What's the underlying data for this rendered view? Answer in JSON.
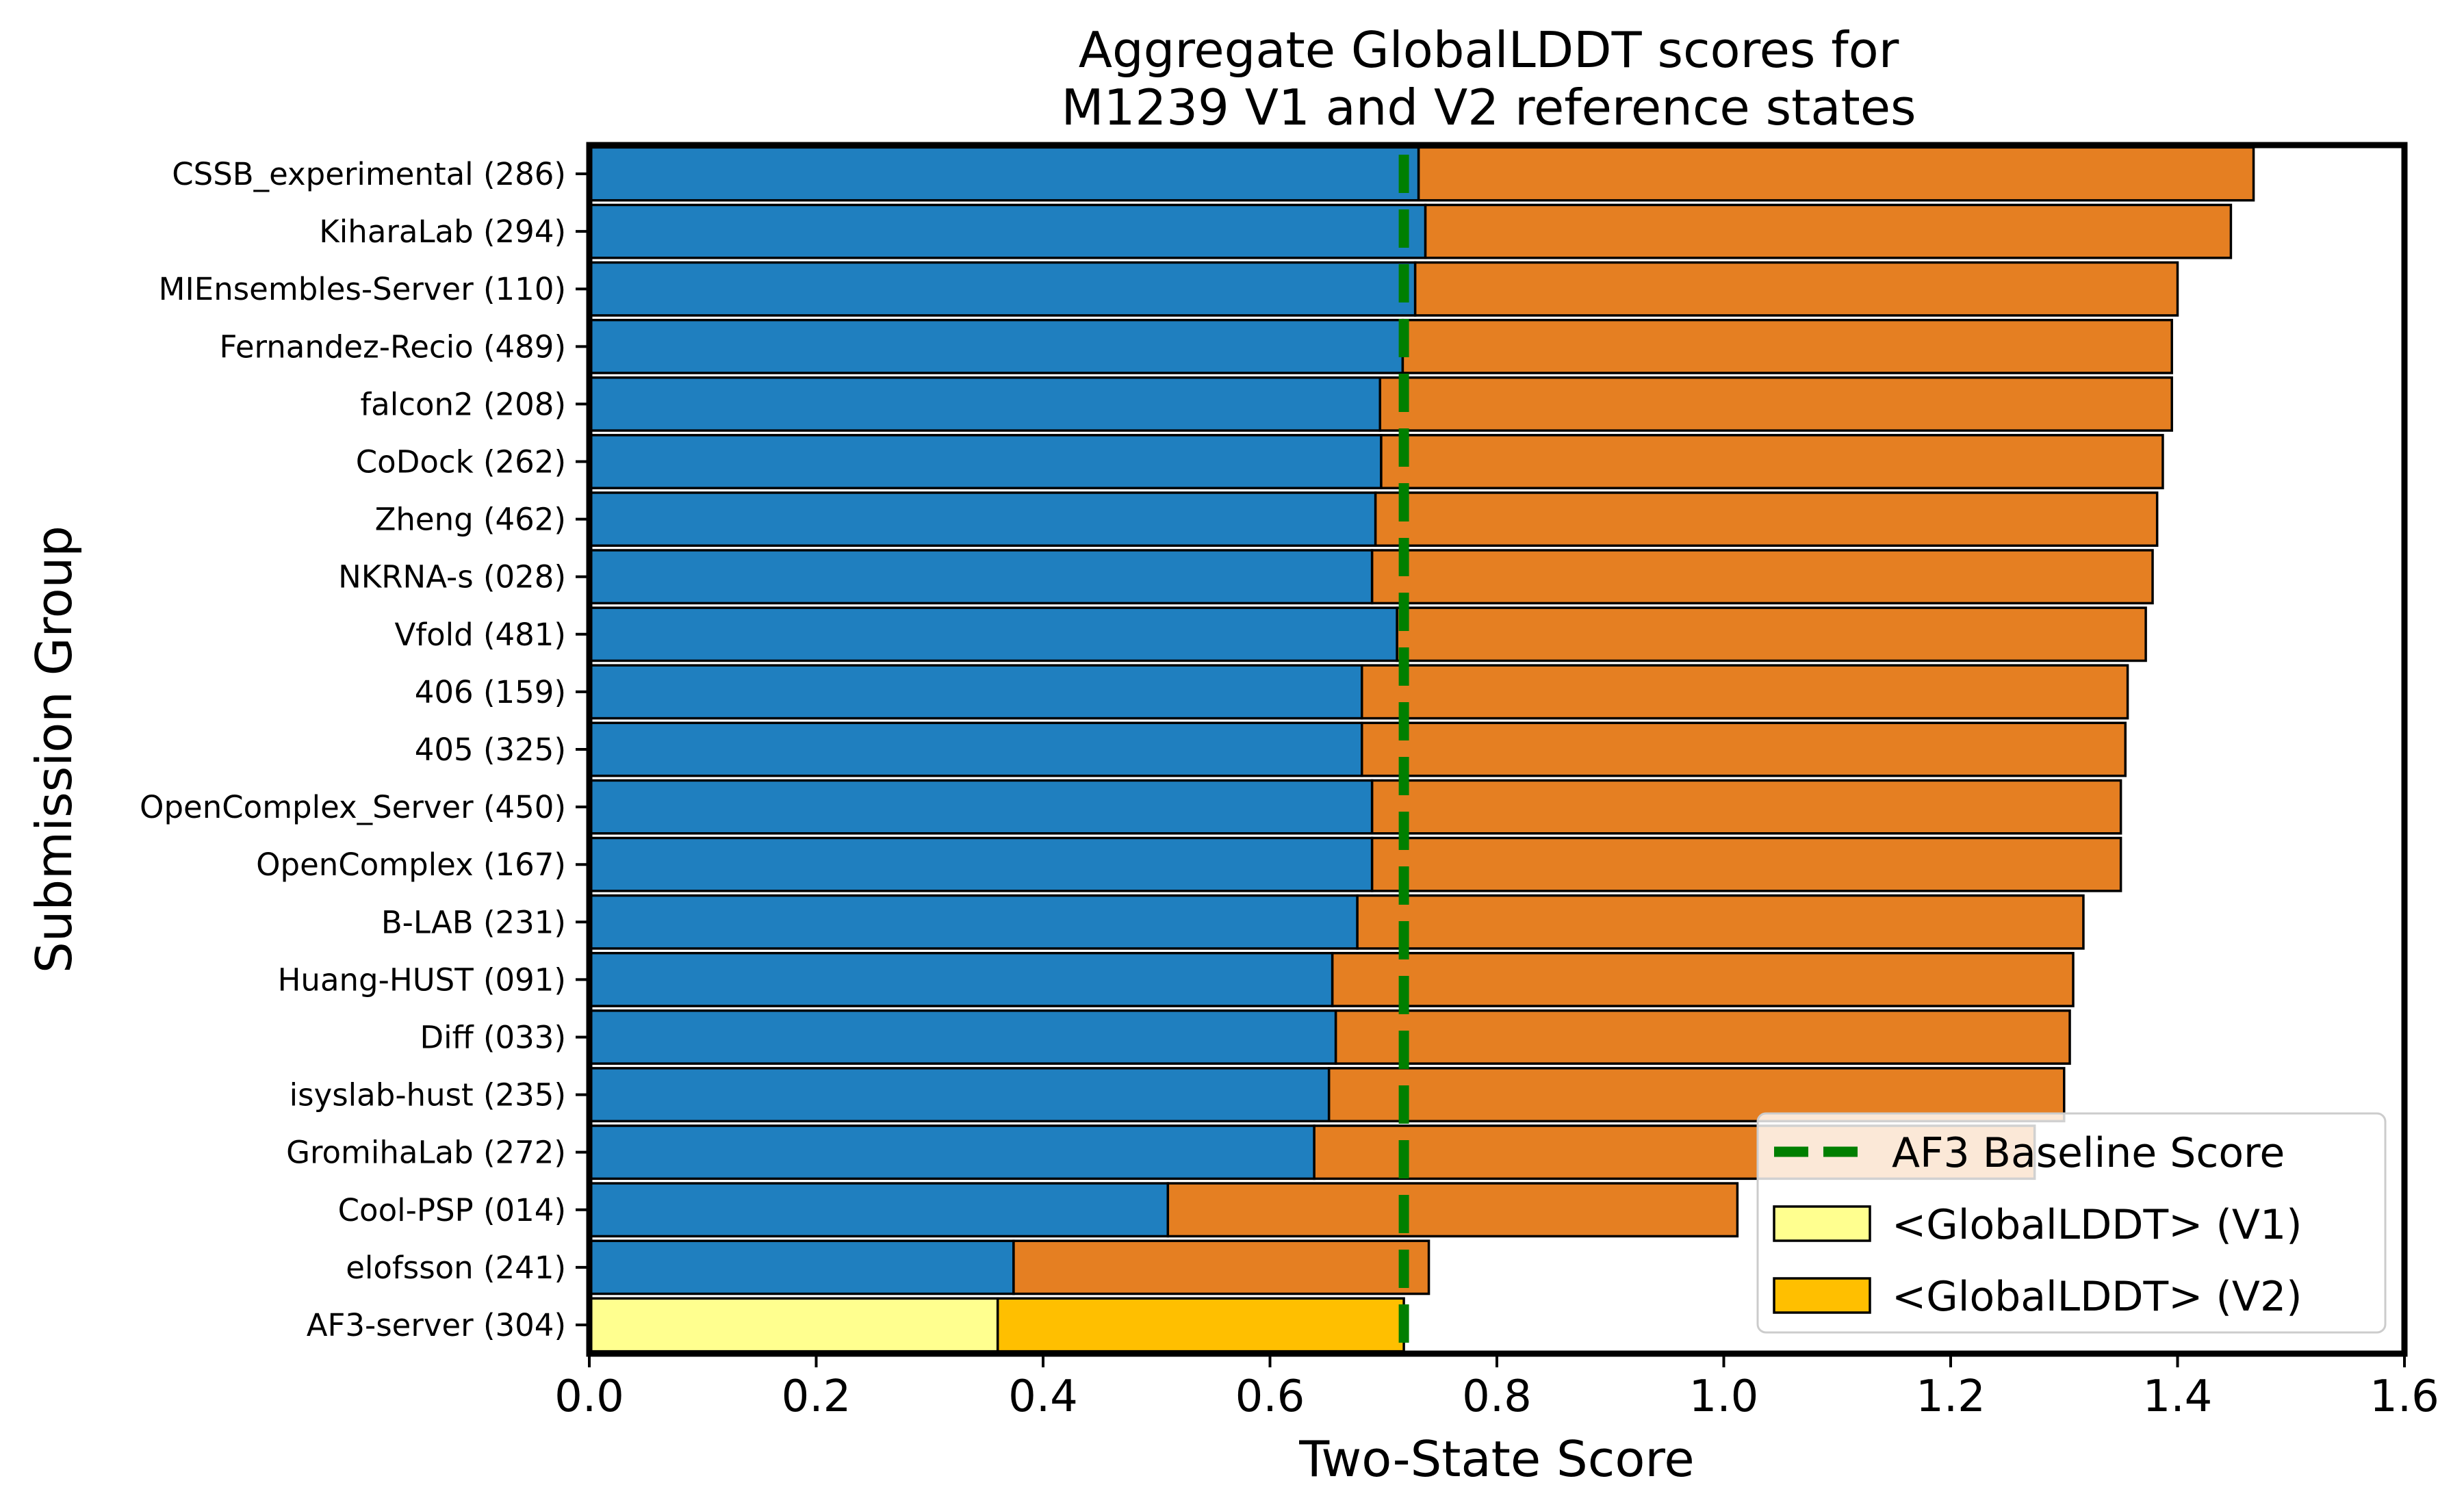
{
  "chart_data": {
    "type": "bar",
    "orientation": "horizontal",
    "stacked": true,
    "title": "Aggregate GlobalLDDT scores for\nM1239 V1 and V2 reference states",
    "xlabel": "Two-State Score",
    "ylabel": "Submission Group",
    "xlim": [
      0.0,
      1.6
    ],
    "xticks": [
      "0.0",
      "0.2",
      "0.4",
      "0.6",
      "0.8",
      "1.0",
      "1.2",
      "1.4",
      "1.6"
    ],
    "grid": false,
    "legend_position": "lower-right",
    "categories": [
      "CSSB_experimental (286)",
      "KiharaLab (294)",
      "MIEnsembles-Server (110)",
      "Fernandez-Recio (489)",
      "falcon2 (208)",
      "CoDock (262)",
      "Zheng (462)",
      "NKRNA-s (028)",
      "Vfold (481)",
      "406 (159)",
      "405 (325)",
      "OpenComplex_Server (450)",
      "OpenComplex (167)",
      "B-LAB (231)",
      "Huang-HUST (091)",
      "Diff (033)",
      "isyslab-hust (235)",
      "GromihaLab (272)",
      "Cool-PSP (014)",
      "elofsson (241)",
      "AF3-server (304)"
    ],
    "series": [
      {
        "name": "<GlobalLDDT> (V1)",
        "colors": [
          "#1f7fbf",
          "#1f7fbf",
          "#1f7fbf",
          "#1f7fbf",
          "#1f7fbf",
          "#1f7fbf",
          "#1f7fbf",
          "#1f7fbf",
          "#1f7fbf",
          "#1f7fbf",
          "#1f7fbf",
          "#1f7fbf",
          "#1f7fbf",
          "#1f7fbf",
          "#1f7fbf",
          "#1f7fbf",
          "#1f7fbf",
          "#1f7fbf",
          "#1f7fbf",
          "#1f7fbf",
          "#ffff8f"
        ],
        "values": [
          0.731,
          0.737,
          0.728,
          0.717,
          0.697,
          0.698,
          0.693,
          0.69,
          0.712,
          0.681,
          0.681,
          0.69,
          0.69,
          0.677,
          0.655,
          0.658,
          0.652,
          0.639,
          0.51,
          0.374,
          0.36
        ]
      },
      {
        "name": "<GlobalLDDT> (V2)",
        "colors": [
          "#e57f22",
          "#e57f22",
          "#e57f22",
          "#e57f22",
          "#e57f22",
          "#e57f22",
          "#e57f22",
          "#e57f22",
          "#e57f22",
          "#e57f22",
          "#e57f22",
          "#e57f22",
          "#e57f22",
          "#e57f22",
          "#e57f22",
          "#e57f22",
          "#e57f22",
          "#e57f22",
          "#e57f22",
          "#e57f22",
          "#ffbf00"
        ],
        "values": [
          0.736,
          0.71,
          0.672,
          0.678,
          0.698,
          0.689,
          0.689,
          0.688,
          0.66,
          0.675,
          0.673,
          0.66,
          0.66,
          0.64,
          0.653,
          0.647,
          0.648,
          0.635,
          0.502,
          0.366,
          0.358
        ]
      }
    ],
    "reference_line": {
      "name": "AF3 Baseline Score",
      "value": 0.718,
      "color": "#007f00",
      "style": "dashed"
    },
    "legend": [
      {
        "label": "AF3 Baseline Score",
        "kind": "line",
        "color": "#007f00"
      },
      {
        "label": "<GlobalLDDT> (V1)",
        "kind": "patch",
        "color": "#ffff8f"
      },
      {
        "label": "<GlobalLDDT> (V2)",
        "kind": "patch",
        "color": "#ffbf00"
      }
    ]
  }
}
